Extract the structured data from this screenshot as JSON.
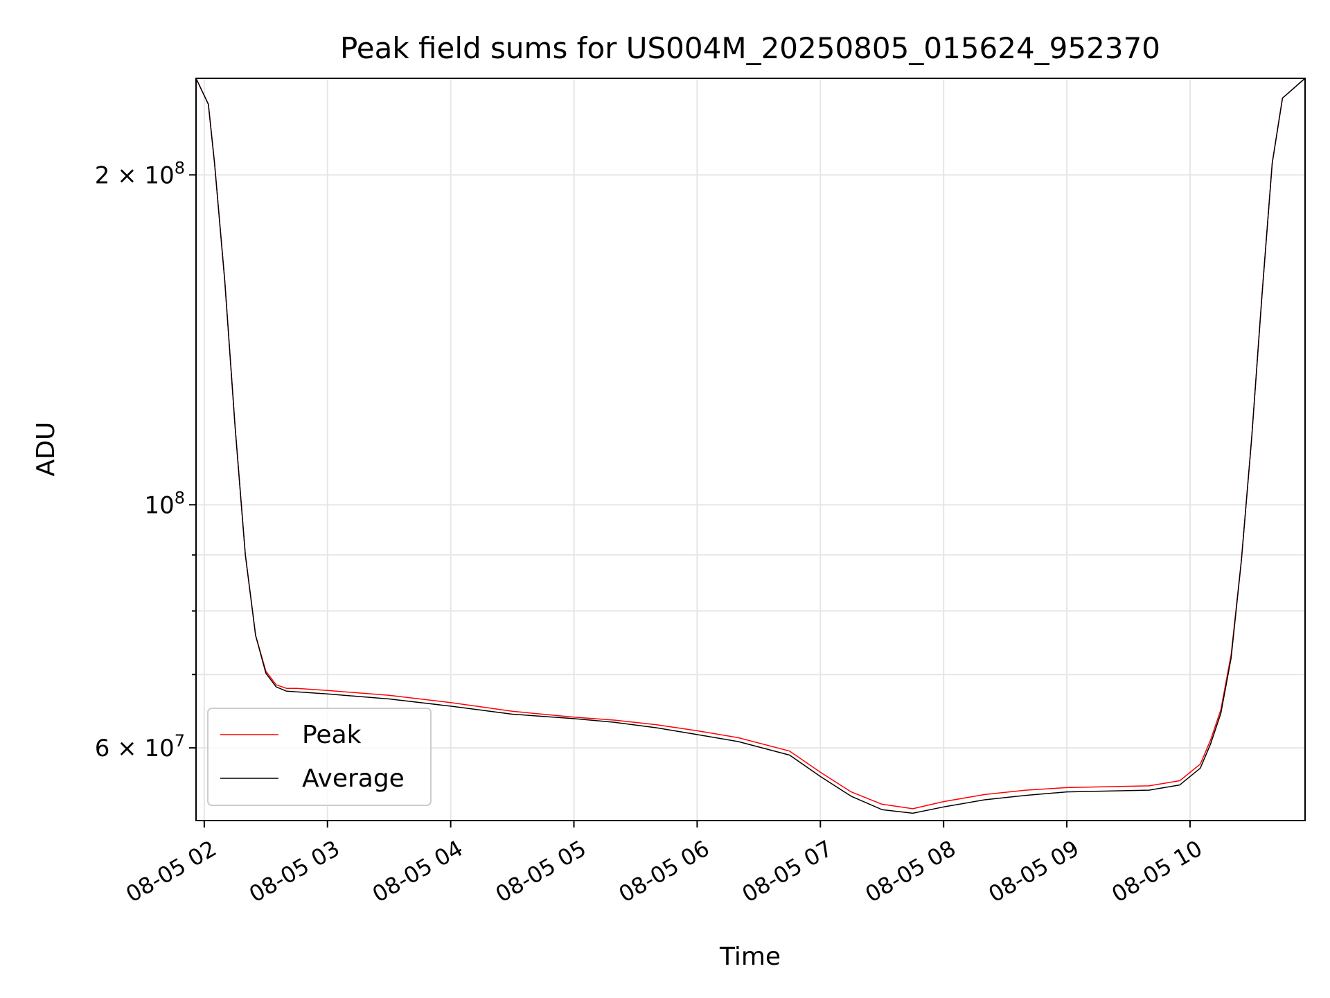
{
  "chart_data": {
    "type": "line",
    "title": "Peak field sums for US004M_20250805_015624_952370",
    "xlabel": "Time",
    "ylabel": "ADU",
    "x_axis_type": "datetime",
    "xlim": [
      "2025-08-05 01:56",
      "2025-08-05 10:56"
    ],
    "ylim": [
      51500000,
      245000000
    ],
    "yscale": "log",
    "grid": true,
    "legend_position": "lower-left",
    "x_ticks": [
      {
        "value": "2025-08-05 02:00",
        "label": "08-05 02"
      },
      {
        "value": "2025-08-05 03:00",
        "label": "08-05 03"
      },
      {
        "value": "2025-08-05 04:00",
        "label": "08-05 04"
      },
      {
        "value": "2025-08-05 05:00",
        "label": "08-05 05"
      },
      {
        "value": "2025-08-05 06:00",
        "label": "08-05 06"
      },
      {
        "value": "2025-08-05 07:00",
        "label": "08-05 07"
      },
      {
        "value": "2025-08-05 08:00",
        "label": "08-05 08"
      },
      {
        "value": "2025-08-05 09:00",
        "label": "08-05 09"
      },
      {
        "value": "2025-08-05 10:00",
        "label": "08-05 10"
      }
    ],
    "y_major_ticks": [
      {
        "value": 60000000,
        "base": "6 × 10",
        "exp": "7"
      },
      {
        "value": 100000000,
        "base": "10",
        "exp": "8"
      },
      {
        "value": 200000000,
        "base": "2 × 10",
        "exp": "8"
      }
    ],
    "y_minor_ticks": [
      70000000,
      80000000,
      90000000
    ],
    "series": [
      {
        "name": "Peak",
        "color": "#ff0000",
        "x": [
          "2025-08-05 01:56",
          "2025-08-05 02:02",
          "2025-08-05 02:05",
          "2025-08-05 02:10",
          "2025-08-05 02:15",
          "2025-08-05 02:20",
          "2025-08-05 02:25",
          "2025-08-05 02:30",
          "2025-08-05 02:35",
          "2025-08-05 02:40",
          "2025-08-05 02:45",
          "2025-08-05 02:50",
          "2025-08-05 03:00",
          "2025-08-05 03:30",
          "2025-08-05 04:00",
          "2025-08-05 04:30",
          "2025-08-05 05:00",
          "2025-08-05 05:20",
          "2025-08-05 05:40",
          "2025-08-05 06:00",
          "2025-08-05 06:20",
          "2025-08-05 06:45",
          "2025-08-05 07:00",
          "2025-08-05 07:15",
          "2025-08-05 07:30",
          "2025-08-05 07:45",
          "2025-08-05 08:00",
          "2025-08-05 08:20",
          "2025-08-05 08:40",
          "2025-08-05 09:00",
          "2025-08-05 09:20",
          "2025-08-05 09:40",
          "2025-08-05 09:55",
          "2025-08-05 10:05",
          "2025-08-05 10:10",
          "2025-08-05 10:15",
          "2025-08-05 10:20",
          "2025-08-05 10:25",
          "2025-08-05 10:30",
          "2025-08-05 10:35",
          "2025-08-05 10:40",
          "2025-08-05 10:45",
          "2025-08-05 10:56"
        ],
        "y": [
          245000000,
          232000000,
          205000000,
          160000000,
          118000000,
          90000000,
          76000000,
          70500000,
          68500000,
          68000000,
          68000000,
          67900000,
          67700000,
          67000000,
          66000000,
          64800000,
          64000000,
          63600000,
          63000000,
          62200000,
          61300000,
          59600000,
          57000000,
          54700000,
          53300000,
          52800000,
          53600000,
          54400000,
          54900000,
          55200000,
          55300000,
          55400000,
          56000000,
          58000000,
          61000000,
          65000000,
          73000000,
          89000000,
          115000000,
          155000000,
          205000000,
          235000000,
          245000000
        ]
      },
      {
        "name": "Average",
        "color": "#000000",
        "x": [
          "2025-08-05 01:56",
          "2025-08-05 02:02",
          "2025-08-05 02:05",
          "2025-08-05 02:10",
          "2025-08-05 02:15",
          "2025-08-05 02:20",
          "2025-08-05 02:25",
          "2025-08-05 02:30",
          "2025-08-05 02:35",
          "2025-08-05 02:40",
          "2025-08-05 02:45",
          "2025-08-05 02:50",
          "2025-08-05 03:00",
          "2025-08-05 03:30",
          "2025-08-05 04:00",
          "2025-08-05 04:30",
          "2025-08-05 05:00",
          "2025-08-05 05:20",
          "2025-08-05 05:40",
          "2025-08-05 06:00",
          "2025-08-05 06:20",
          "2025-08-05 06:45",
          "2025-08-05 07:00",
          "2025-08-05 07:15",
          "2025-08-05 07:30",
          "2025-08-05 07:45",
          "2025-08-05 08:00",
          "2025-08-05 08:20",
          "2025-08-05 08:40",
          "2025-08-05 09:00",
          "2025-08-05 09:20",
          "2025-08-05 09:40",
          "2025-08-05 09:55",
          "2025-08-05 10:05",
          "2025-08-05 10:10",
          "2025-08-05 10:15",
          "2025-08-05 10:20",
          "2025-08-05 10:25",
          "2025-08-05 10:30",
          "2025-08-05 10:35",
          "2025-08-05 10:40",
          "2025-08-05 10:45",
          "2025-08-05 10:56"
        ],
        "y": [
          245000000,
          232000000,
          205000000,
          160000000,
          118000000,
          90000000,
          76000000,
          70200000,
          68200000,
          67600000,
          67500000,
          67400000,
          67200000,
          66500000,
          65500000,
          64400000,
          63800000,
          63300000,
          62600000,
          61700000,
          60800000,
          59100000,
          56500000,
          54200000,
          52700000,
          52300000,
          53000000,
          53800000,
          54300000,
          54700000,
          54800000,
          54900000,
          55500000,
          57500000,
          60500000,
          64500000,
          72500000,
          89000000,
          115000000,
          155000000,
          205000000,
          235000000,
          245000000
        ]
      }
    ]
  }
}
